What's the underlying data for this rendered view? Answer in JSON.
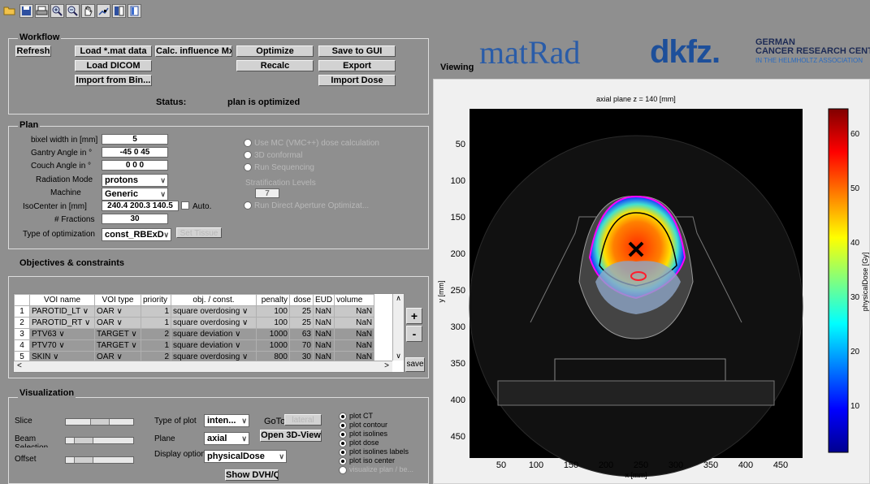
{
  "toolbar": {
    "icons": [
      "open-folder-icon",
      "save-icon",
      "print-icon",
      "zoom-in-icon",
      "zoom-out-icon",
      "pan-hand-icon",
      "data-cursor-icon",
      "colorbar-icon",
      "legend-icon"
    ]
  },
  "workflow": {
    "title": "Workflow",
    "refresh": "Refresh",
    "load_mat": "Load *.mat data",
    "calc_influence": "Calc. influence Mx",
    "optimize": "Optimize",
    "save_gui": "Save to GUI",
    "load_dicom": "Load DICOM",
    "recalc": "Recalc",
    "export": "Export",
    "import_bin": "Import from Bin...",
    "import_dose": "Import Dose",
    "status_label": "Status:",
    "status_value": "plan is optimized"
  },
  "plan": {
    "title": "Plan",
    "bixel_label": "bixel width in [mm]",
    "bixel_value": "5",
    "gantry_label": "Gantry Angle in °",
    "gantry_value": "-45 0 45",
    "couch_label": "Couch Angle in °",
    "couch_value": "0 0 0",
    "radmode_label": "Radiation Mode",
    "radmode_value": "protons",
    "machine_label": "Machine",
    "machine_value": "Generic",
    "isocenter_label": "IsoCenter in [mm]",
    "isocenter_value": "240.4 200.3 140.5",
    "auto_label": "Auto.",
    "fractions_label": "# Fractions",
    "fractions_value": "30",
    "opt_type_label": "Type of optimization",
    "opt_type_value": "const_RBExD",
    "set_tissue": "Set Tissue",
    "use_mc": "Use MC (VMC++) dose calculation",
    "conformal": "3D conformal",
    "sequencing": "Run Sequencing",
    "strat_label": "Stratification Levels",
    "strat_value": "7",
    "dao": "Run Direct Aperture Optimizat..."
  },
  "objectives": {
    "title": "Objectives & constraints",
    "headers": [
      "",
      "VOI name",
      "VOI type",
      "priority",
      "obj. / const.",
      "penalty",
      "dose",
      "EUD",
      "volume"
    ],
    "rows": [
      {
        "idx": "1",
        "name": "PAROTID_LT",
        "type": "OAR",
        "priority": "1",
        "obj": "square overdosing",
        "penalty": "100",
        "dose": "25",
        "eud": "NaN",
        "volume": "NaN"
      },
      {
        "idx": "2",
        "name": "PAROTID_RT",
        "type": "OAR",
        "priority": "1",
        "obj": "square overdosing",
        "penalty": "100",
        "dose": "25",
        "eud": "NaN",
        "volume": "NaN"
      },
      {
        "idx": "3",
        "name": "PTV63",
        "type": "TARGET",
        "priority": "2",
        "obj": "square deviation",
        "penalty": "1000",
        "dose": "63",
        "eud": "NaN",
        "volume": "NaN"
      },
      {
        "idx": "4",
        "name": "PTV70",
        "type": "TARGET",
        "priority": "1",
        "obj": "square deviation",
        "penalty": "1000",
        "dose": "70",
        "eud": "NaN",
        "volume": "NaN"
      },
      {
        "idx": "5",
        "name": "SKIN",
        "type": "OAR",
        "priority": "2",
        "obj": "square overdosing",
        "penalty": "800",
        "dose": "30",
        "eud": "NaN",
        "volume": "NaN"
      }
    ],
    "add": "+",
    "remove": "-",
    "save": "save"
  },
  "visualization": {
    "title": "Visualization",
    "slice_label": "Slice",
    "beam_label": "Beam",
    "beam_sub": "Selection",
    "offset_label": "Offset",
    "type_plot_label": "Type of plot",
    "type_plot_value": "inten...",
    "goto_label": "GoTo",
    "lateral": "lateral",
    "plane_label": "Plane",
    "plane_value": "axial",
    "open3d": "Open 3D-View",
    "display_label": "Display option",
    "display_value": "physicalDose",
    "show_dvh": "Show DVH/QI",
    "radios": [
      {
        "label": "plot CT",
        "on": true
      },
      {
        "label": "plot contour",
        "on": true
      },
      {
        "label": "plot isolines",
        "on": true
      },
      {
        "label": "plot dose",
        "on": true
      },
      {
        "label": "plot isolines labels",
        "on": true
      },
      {
        "label": "plot iso center",
        "on": true
      },
      {
        "label": "visualize plan / be...",
        "on": false
      }
    ]
  },
  "viewing": {
    "title": "Viewing",
    "logo": "matRad",
    "dkfz": "dkfz.",
    "dkfz_line1": "GERMAN",
    "dkfz_line2": "CANCER RESEARCH CENTER",
    "dkfz_line3": "IN THE HELMHOLTZ ASSOCIATION",
    "plot_title": "axial plane z = 140 [mm]",
    "y_axis_label": "y [mm]",
    "x_axis_label": "x [mm]",
    "y_ticks": [
      "50",
      "100",
      "150",
      "200",
      "250",
      "300",
      "350",
      "400",
      "450"
    ],
    "x_ticks": [
      "50",
      "100",
      "150",
      "200",
      "250",
      "300",
      "350",
      "400",
      "450"
    ],
    "colorbar_ticks": [
      "60",
      "50",
      "40",
      "30",
      "20",
      "10"
    ],
    "colorbar_label": "physicalDose [Gy]"
  },
  "colors": {
    "background": "#8f8f8f",
    "viewing_bg": "#f0f0f0",
    "dkfz_blue": "#1d4f9a",
    "matrad_blue": "#2a5ca8"
  }
}
